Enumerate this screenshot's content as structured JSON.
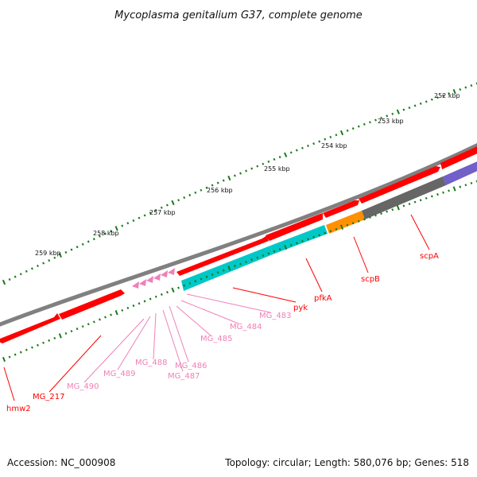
{
  "title": "Mycoplasma genitalium G37, complete genome",
  "footer": {
    "accession": "Accession: NC_000908",
    "summary": "Topology: circular; Length: 580,076 bp; Genes: 518"
  },
  "ticks": [
    "252 kbp",
    "253 kbp",
    "254 kbp",
    "255 kbp",
    "256 kbp",
    "257 kbp",
    "258 kbp",
    "259 kbp"
  ],
  "genes": [
    {
      "name": "scpA",
      "color": "#ff0000"
    },
    {
      "name": "scpB",
      "color": "#ff0000"
    },
    {
      "name": "pfkA",
      "color": "#ff0000"
    },
    {
      "name": "pyk",
      "color": "#ff0000"
    },
    {
      "name": "MG_483",
      "color": "#f080b8"
    },
    {
      "name": "MG_484",
      "color": "#f080b8"
    },
    {
      "name": "MG_485",
      "color": "#f080b8"
    },
    {
      "name": "MG_486",
      "color": "#f080b8"
    },
    {
      "name": "MG_487",
      "color": "#f080b8"
    },
    {
      "name": "MG_488",
      "color": "#f080b8"
    },
    {
      "name": "MG_489",
      "color": "#f080b8"
    },
    {
      "name": "MG_490",
      "color": "#f080b8"
    },
    {
      "name": "MG_217",
      "color": "#ff0000"
    },
    {
      "name": "hmw2",
      "color": "#ff0000"
    }
  ],
  "colors": {
    "backbone": "#808080",
    "cds_forward": "#ff0000",
    "cds_reverse_cyan": "#00c8c8",
    "orange": "#ff9000",
    "gray_block": "#666666",
    "purple_block": "#7060c8",
    "pink": "#f080b8",
    "tick": "#1a7a1a"
  }
}
